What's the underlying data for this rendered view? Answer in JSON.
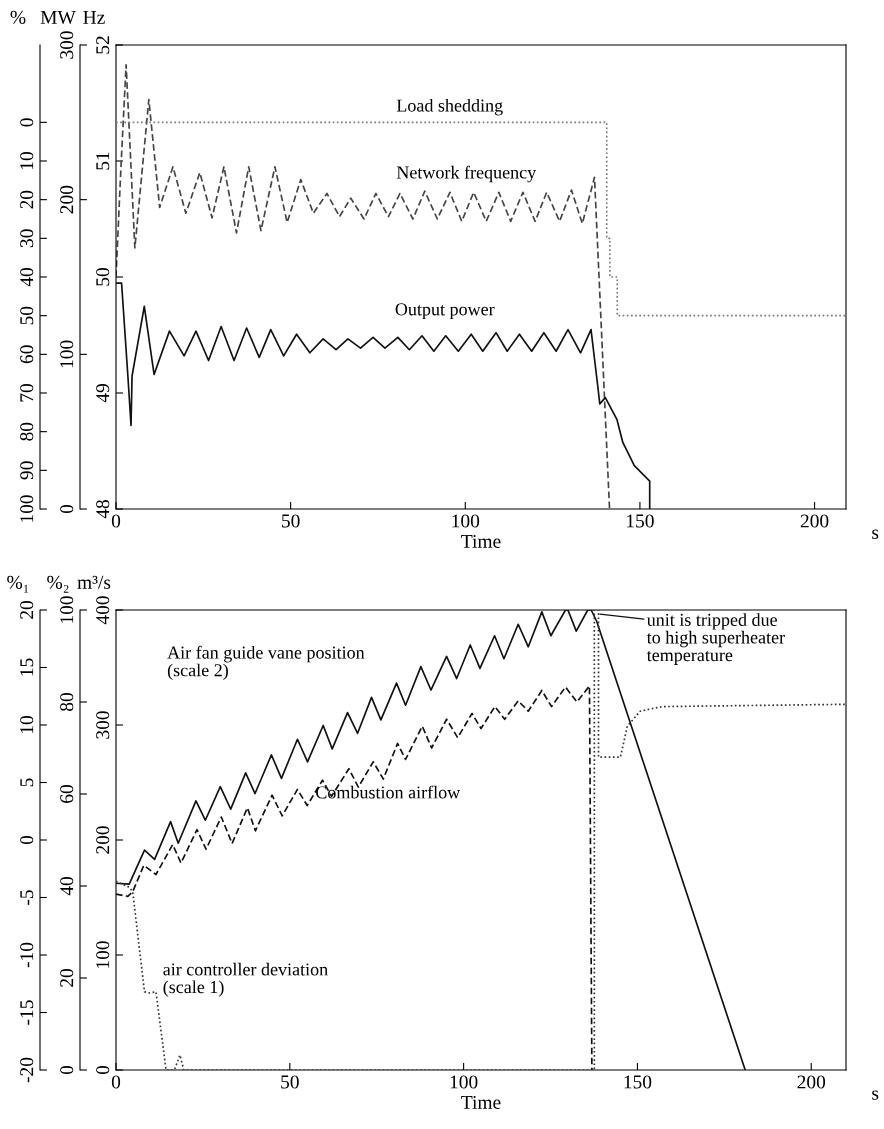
{
  "chart_data": [
    {
      "type": "line",
      "xlabel": "Time",
      "ylabel": "Hz",
      "y2label": "MW",
      "y3label": "%",
      "xlim": [
        0,
        209
      ],
      "xticks": [
        0,
        50,
        100,
        150,
        200
      ],
      "ylim": [
        48,
        52
      ],
      "yticks": [
        48,
        49,
        50,
        51,
        52
      ],
      "y2lim": [
        0,
        300
      ],
      "y2ticks": [
        0,
        100,
        200,
        300
      ],
      "y3lim": [
        100,
        -20
      ],
      "y3ticks": [
        0,
        10,
        20,
        30,
        40,
        50,
        60,
        70,
        80,
        90,
        100
      ],
      "grid": false,
      "legend": false,
      "series": [
        {
          "name": "Load shedding",
          "color": "#7a7a7a",
          "line_style": "dotted",
          "axis": "y3",
          "x": [
            0,
            140.5,
            140.5,
            141.4,
            141.4,
            143.5,
            143.5,
            209
          ],
          "values": [
            0,
            0,
            30,
            30,
            40,
            40,
            50,
            50
          ]
        },
        {
          "name": "Network frequency",
          "color": "#444444",
          "line_style": "dashed",
          "axis": "y",
          "x": [
            0,
            1.5,
            2.9,
            5.4,
            9.4,
            12.5,
            16.3,
            20,
            24,
            27.5,
            30.9,
            34.5,
            38,
            41.5,
            45.5,
            49,
            52.9,
            56.5,
            60.4,
            64,
            67.2,
            71,
            74.4,
            78,
            81.3,
            85,
            88.4,
            92,
            95.6,
            99,
            102.4,
            106,
            109.6,
            113,
            116.5,
            120,
            123.3,
            127,
            130.4,
            133.5,
            137,
            141.3
          ],
          "values": [
            50.0,
            51.0,
            51.83,
            50.25,
            51.53,
            50.6,
            50.95,
            50.55,
            50.9,
            50.51,
            50.95,
            50.38,
            50.95,
            50.4,
            50.95,
            50.47,
            50.84,
            50.55,
            50.72,
            50.52,
            50.68,
            50.5,
            50.72,
            50.52,
            50.72,
            50.5,
            50.74,
            50.5,
            50.73,
            50.48,
            50.73,
            50.48,
            50.73,
            50.48,
            50.73,
            50.48,
            50.73,
            50.48,
            50.75,
            50.46,
            50.86,
            48
          ]
        },
        {
          "name": "Output power",
          "color": "#111111",
          "line_style": "solid",
          "axis": "y2",
          "x": [
            0,
            1.6,
            3.4,
            4.3,
            4.6,
            8.1,
            10.9,
            15.3,
            19.5,
            22.9,
            26.5,
            30.1,
            33.8,
            37.4,
            41,
            44.3,
            48,
            51.7,
            55.5,
            59.3,
            63,
            66.4,
            70,
            73.6,
            77,
            80.7,
            84,
            87.6,
            91,
            94.4,
            98,
            101.7,
            105,
            108.8,
            112,
            115.5,
            119,
            122.5,
            126,
            129.4,
            133,
            136,
            137.9,
            138.5,
            140.1,
            143.4,
            145.1,
            148.4,
            152.8,
            152.8
          ],
          "values": [
            146,
            146,
            86,
            54,
            86,
            131,
            87,
            115,
            99,
            115,
            96,
            118,
            96,
            117,
            98,
            116,
            99,
            113,
            101,
            110,
            103,
            110,
            104,
            111,
            104,
            111,
            103,
            112,
            102,
            112,
            102,
            113,
            102,
            114,
            102,
            113,
            102,
            114,
            102,
            116,
            101,
            116,
            80,
            68,
            72,
            58,
            43,
            28,
            18,
            0
          ]
        }
      ],
      "annotations": [
        "s"
      ]
    },
    {
      "type": "line",
      "xlabel": "Time",
      "ylabel": "m³/s",
      "y2label": "%₂",
      "y3label": "%₁",
      "xlim": [
        0,
        210
      ],
      "xticks": [
        0,
        50,
        100,
        150,
        200
      ],
      "ylim": [
        0,
        400
      ],
      "yticks": [
        0,
        100,
        200,
        300,
        400
      ],
      "y2lim": [
        0,
        100
      ],
      "y2ticks": [
        0,
        20,
        40,
        60,
        80,
        100
      ],
      "y3lim": [
        -20,
        20
      ],
      "y3ticks": [
        -20,
        -15,
        -10,
        -5,
        0,
        5,
        10,
        15,
        20
      ],
      "grid": false,
      "legend": false,
      "series": [
        {
          "name": "Air fan guide vane position\n(scale 2)",
          "color": "#111111",
          "line_style": "solid",
          "axis": "y2",
          "x": [
            0,
            3.8,
            8.2,
            11.1,
            15.7,
            17.9,
            23,
            25.7,
            30,
            33,
            37.3,
            40,
            44.7,
            47.6,
            52.2,
            55.1,
            59.6,
            62.2,
            66.6,
            69.5,
            73.5,
            76.2,
            80.7,
            83.3,
            87.7,
            90.6,
            95.1,
            98,
            101.9,
            104.7,
            108.9,
            111.6,
            115.7,
            118.6,
            122.5,
            125.1,
            129.3,
            130,
            132.4,
            135.7,
            136.7,
            138.3,
            181
          ],
          "values": [
            40.6,
            40.4,
            47.8,
            45.8,
            54,
            49.3,
            58.5,
            54.3,
            61.6,
            56.7,
            64.6,
            60.1,
            68.5,
            63.4,
            71.9,
            67,
            74.9,
            69.8,
            77.7,
            73.2,
            81,
            76.1,
            84.1,
            79.3,
            87.7,
            82.6,
            89.9,
            85.1,
            92.4,
            87.3,
            94.4,
            89.4,
            96.9,
            92,
            99.6,
            94.4,
            100,
            100,
            95.4,
            100,
            100,
            97.5,
            0
          ]
        },
        {
          "name": "Combustion airflow",
          "color": "#111111",
          "line_style": "dashed",
          "axis": "y",
          "x": [
            0,
            3.4,
            4.8,
            8,
            11.5,
            16.3,
            18.7,
            23.3,
            25.9,
            30.3,
            33.4,
            37.8,
            40.1,
            44.9,
            47.8,
            52.2,
            55,
            59.4,
            62,
            67,
            69.7,
            74,
            76.9,
            81,
            83.3,
            88.1,
            90.8,
            95.1,
            98.3,
            102.4,
            105,
            109,
            111.8,
            115.7,
            118.6,
            122.5,
            125.3,
            129.3,
            132.6,
            136.2,
            136.9
          ],
          "values": [
            153,
            151,
            155,
            178,
            170,
            196,
            180,
            209,
            192,
            220,
            197,
            228,
            208,
            239,
            221,
            244,
            230,
            252,
            238,
            262,
            246,
            268,
            253,
            284,
            270,
            299,
            280,
            305,
            289,
            310,
            297,
            316,
            305,
            321,
            312,
            330,
            316,
            333,
            320,
            334,
            0
          ]
        },
        {
          "name": "air controller deviation\n(scale 1)",
          "color": "#333333",
          "line_style": "dotted",
          "axis": "y3",
          "x": [
            0,
            3.8,
            4.8,
            8.2,
            9.6,
            11.5,
            14.4,
            16.8,
            18.4,
            19.5,
            137.6,
            137.6,
            138.8,
            138.8,
            145.1,
            147.1,
            150.8,
            157.1,
            210
          ],
          "values": [
            -3.6,
            -4.1,
            -4.5,
            -13.2,
            -13.3,
            -13.2,
            -20,
            -20,
            -18.7,
            -20,
            -20,
            20,
            20,
            7.2,
            7.2,
            9.9,
            11.2,
            11.6,
            11.8
          ]
        }
      ],
      "annotations": [
        "unit is tripped due\nto high superheater\ntemperature",
        "s"
      ]
    }
  ]
}
